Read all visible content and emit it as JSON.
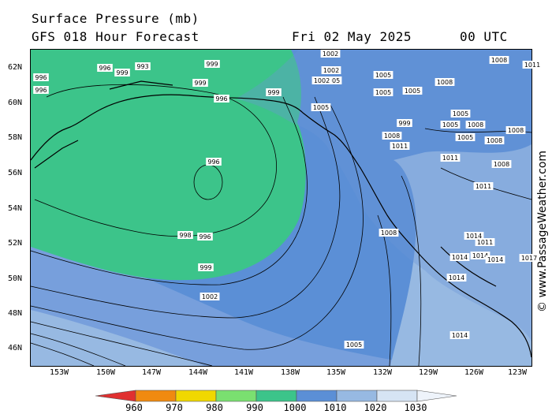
{
  "header": {
    "title": "Surface Pressure (mb)",
    "model": "GFS 018 Hour Forecast",
    "date": "Fri 02 May 2025",
    "time": "00 UTC"
  },
  "credit": "© www.PassageWeather.com",
  "lat_labels": [
    "62N",
    "60N",
    "58N",
    "56N",
    "54N",
    "52N",
    "50N",
    "48N",
    "46N"
  ],
  "lon_labels": [
    "153W",
    "150W",
    "147W",
    "144W",
    "141W",
    "138W",
    "135W",
    "132W",
    "129W",
    "126W",
    "123W"
  ],
  "colorbar": {
    "labels": [
      "960",
      "970",
      "980",
      "990",
      "1000",
      "1010",
      "1020",
      "1030"
    ],
    "colors": [
      "#e03030",
      "#f08a10",
      "#f0d800",
      "#7ae070",
      "#3cc48a",
      "#5b8fd6",
      "#97b9e2",
      "#d6e4f4"
    ]
  },
  "fill_colors": {
    "low_core": "#3cc48a",
    "mid": "#5b8fd6",
    "outer": "#779fdc",
    "light": "#97b9e2"
  },
  "isobar_labels": [
    "1002",
    "1005",
    "1005",
    "1008",
    "1008",
    "1011",
    "1011",
    "1014",
    "1002",
    "1002",
    "1005",
    "1005",
    "1005",
    "1005",
    "1008",
    "1008",
    "1005",
    "1005",
    "1008",
    "1011",
    "1011",
    "1008",
    "1008",
    "1011",
    "1014",
    "1014",
    "1014",
    "1014",
    "1014",
    "1017",
    "1008",
    "1005",
    "1002",
    "999",
    "998",
    "996",
    "996",
    "993",
    "999",
    "999",
    "999",
    "996",
    "996",
    "996",
    "996",
    "999",
    "999",
    "1011"
  ]
}
